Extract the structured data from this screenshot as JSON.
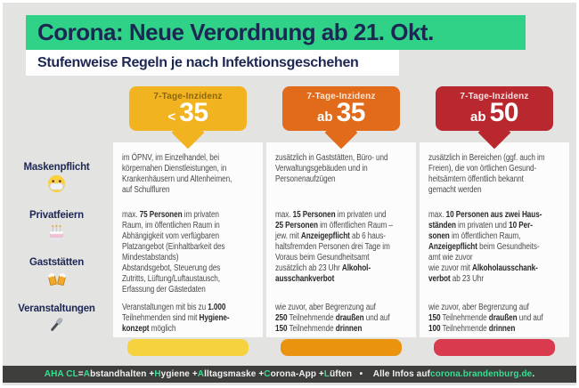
{
  "page": {
    "bg": "#e3e3e2",
    "navy": "#1d2754",
    "title": "Corona: Neue Verordnung ab 21. Okt.",
    "title_bg": "#2fd287",
    "subtitle": "Stufenweise Regeln je nach Infektionsgeschehen"
  },
  "rows": [
    {
      "label": "Maskenpflicht",
      "icon": "face-mask-icon"
    },
    {
      "label": "Privatfeiern",
      "icon": "birthday-cake-icon"
    },
    {
      "label": "Gaststätten",
      "icon": "beer-mugs-icon"
    },
    {
      "label": "Veranstaltungen",
      "icon": "microphone-icon"
    }
  ],
  "columns": [
    {
      "header_label": "7-Tage-Inzidenz",
      "header_label_color": "rgba(70,50,0,0.6)",
      "threshold_prefix": "<",
      "threshold_value": "35",
      "color": "#f1b320",
      "bar_color": "#f6d33e",
      "cells": [
        {
          "segments": [
            {
              "t": "im ÖPNV, im Einzelhandel, bei\nkörpernahen Dienstleistungen, in\nKrankenhäusern und Altenheimen,\nauf Schulfluren"
            }
          ]
        },
        {
          "segments": [
            {
              "t": "max. "
            },
            {
              "t": "75 Personen",
              "b": true
            },
            {
              "t": " im privaten\nRaum, im öffentlichen Raum in\nAbhängigkeit vom verfügbaren\nPlatzangebot (Einhaltbarkeit des\nMindestabstands)"
            }
          ]
        },
        {
          "segments": [
            {
              "t": "Abstandsgebot, Steuerung des\nZutritts, Lüftung/Luftaustausch,\nErfassung der Gästedaten"
            }
          ]
        },
        {
          "segments": [
            {
              "t": "Veranstaltungen mit bis zu "
            },
            {
              "t": "1.000",
              "b": true
            },
            {
              "t": "\nTeilnehmenden sind mit "
            },
            {
              "t": "Hygiene-\nkonzept",
              "b": true
            },
            {
              "t": " möglich"
            }
          ]
        }
      ]
    },
    {
      "header_label": "7-Tage-Inzidenz",
      "header_label_color": "rgba(255,240,225,0.92)",
      "threshold_prefix": "ab",
      "threshold_value": "35",
      "color": "#e26a1b",
      "bar_color": "#ea930e",
      "cells": [
        {
          "segments": [
            {
              "t": "zusätzlich in Gaststätten, Büro- und\nVerwaltungsgebäuden und in\nPersonenaufzügen"
            }
          ]
        },
        {
          "segments": [
            {
              "t": "max. "
            },
            {
              "t": "15 Personen",
              "b": true
            },
            {
              "t": " im privaten und\n"
            },
            {
              "t": "25 Personen",
              "b": true
            },
            {
              "t": " im öffentlichen Raum –\njew. mit "
            },
            {
              "t": "Anzeigepflicht",
              "b": true
            },
            {
              "t": " ab 6 haus-\nhaltsfremden Personen drei Tage im\nVoraus beim Gesundheitsamt"
            }
          ]
        },
        {
          "segments": [
            {
              "t": "zusätzlich ab 23 Uhr "
            },
            {
              "t": "Alkohol-\nausschankverbot",
              "b": true
            }
          ]
        },
        {
          "segments": [
            {
              "t": "wie zuvor, aber Begrenzung auf\n"
            },
            {
              "t": "250",
              "b": true
            },
            {
              "t": " Teilnehmende "
            },
            {
              "t": "draußen",
              "b": true
            },
            {
              "t": " und auf\n"
            },
            {
              "t": "150",
              "b": true
            },
            {
              "t": " Teilnehmende "
            },
            {
              "t": "drinnen",
              "b": true
            }
          ]
        }
      ]
    },
    {
      "header_label": "7-Tage-Inzidenz",
      "header_label_color": "rgba(255,235,235,0.95)",
      "threshold_prefix": "ab",
      "threshold_value": "50",
      "color": "#b8282e",
      "bar_color": "#da3a4e",
      "cells": [
        {
          "segments": [
            {
              "t": "zusätzlich in Bereichen (ggf. auch im\nFreien), die von örtlichen Gesund-\nheitsämtern öffentlich bekannt\ngemacht werden"
            }
          ]
        },
        {
          "segments": [
            {
              "t": "max. "
            },
            {
              "t": "10 Personen aus zwei Haus-\nständen",
              "b": true
            },
            {
              "t": " im privaten und "
            },
            {
              "t": "10 Per-\nsonen",
              "b": true
            },
            {
              "t": " im öffentlichen Raum,\n"
            },
            {
              "t": "Anzeigepflicht",
              "b": true
            },
            {
              "t": " beim Gesundheits-\namt wie zuvor"
            }
          ]
        },
        {
          "segments": [
            {
              "t": "wie zuvor mit "
            },
            {
              "t": "Alkoholausschank-\nverbot",
              "b": true
            },
            {
              "t": " ab 23 Uhr"
            }
          ]
        },
        {
          "segments": [
            {
              "t": "wie zuvor, aber Begrenzung auf\n"
            },
            {
              "t": "150",
              "b": true
            },
            {
              "t": " Teilnehmende "
            },
            {
              "t": "draußen",
              "b": true
            },
            {
              "t": " und auf\n"
            },
            {
              "t": "100",
              "b": true
            },
            {
              "t": " Teilnehmende "
            },
            {
              "t": "drinnen",
              "b": true
            }
          ]
        }
      ]
    }
  ],
  "footer": {
    "bg": "#3e3e3d",
    "green": "#35df92",
    "segments": [
      {
        "t": "AHA CL",
        "c": "#35df92"
      },
      {
        "t": " = "
      },
      {
        "t": "A",
        "c": "#35df92"
      },
      {
        "t": "bstandhalten + "
      },
      {
        "t": "H",
        "c": "#35df92"
      },
      {
        "t": "ygiene + "
      },
      {
        "t": "A",
        "c": "#35df92"
      },
      {
        "t": "lltagsmaske + "
      },
      {
        "t": "C",
        "c": "#35df92"
      },
      {
        "t": "orona-App + "
      },
      {
        "t": "L",
        "c": "#35df92"
      },
      {
        "t": "üften"
      },
      {
        "t": "   •    Alle Infos auf "
      },
      {
        "t": "corona.brandenburg.de",
        "c": "#35df92",
        "n": "footer-link",
        "i": true
      },
      {
        "t": "."
      }
    ]
  }
}
